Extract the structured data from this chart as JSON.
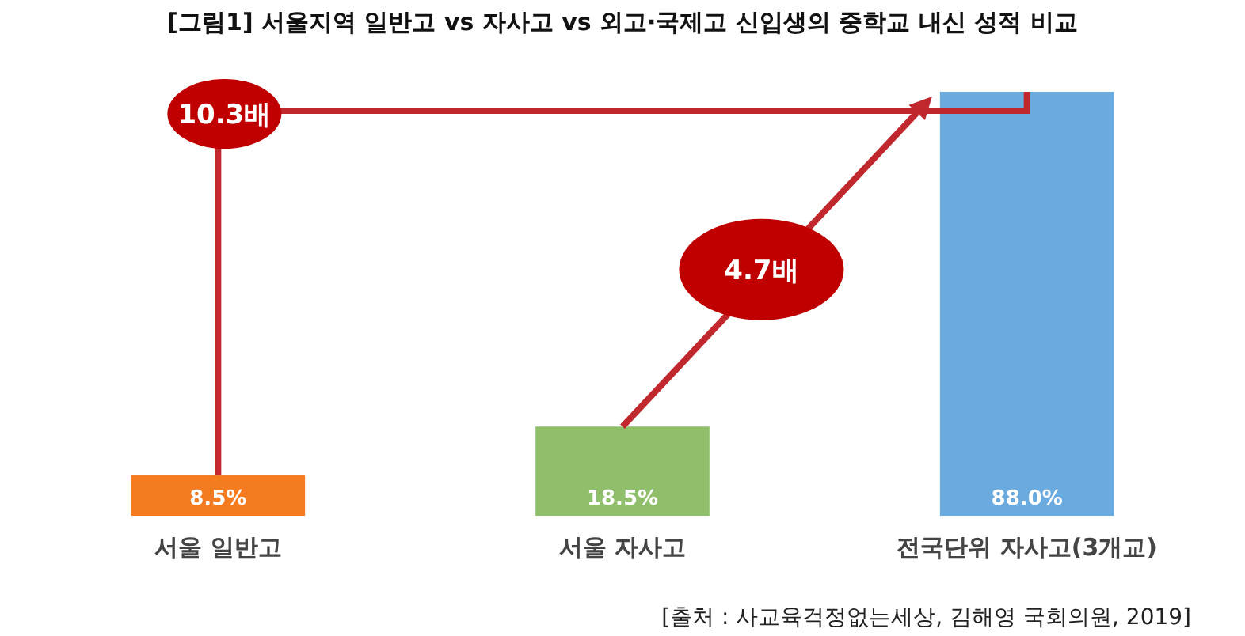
{
  "chart_data": {
    "type": "bar",
    "title": "[그림1] 서울지역 일반고 vs 자사고 vs 외고·국제고 신입생의 중학교 내신 성적 비교",
    "categories": [
      "서울 일반고",
      "서울 자사고",
      "전국단위 자사고(3개교)"
    ],
    "values": [
      8.5,
      18.5,
      88.0
    ],
    "colors": [
      "#f47b20",
      "#8fbf6b",
      "#6aaade"
    ],
    "value_labels": [
      "8.5%",
      "18.5%",
      "88.0%"
    ],
    "annotations": [
      "10.3배",
      "4.7배",
      "[출처 : 사교육걱정없는세상, 김해영 국회의원, 2019]"
    ],
    "grid": false,
    "legend": false
  }
}
